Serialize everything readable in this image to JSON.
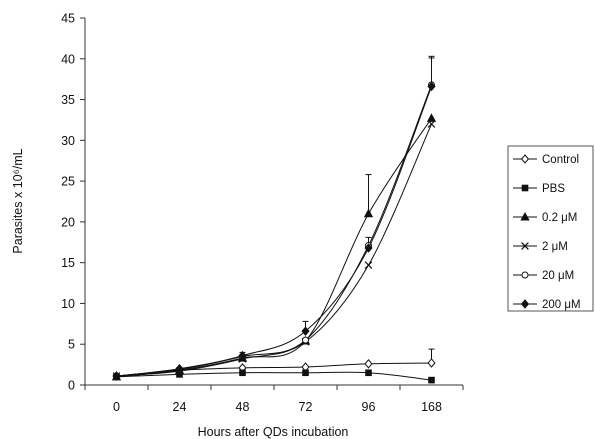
{
  "chart_data": {
    "type": "line",
    "title": "",
    "xlabel": "Hours after QDs incubation",
    "ylabel": "Parasites x 10⁶/mL",
    "categories": [
      "0",
      "24",
      "48",
      "72",
      "96",
      "168"
    ],
    "ylim": [
      0,
      45
    ],
    "yticks": [
      0,
      5,
      10,
      15,
      20,
      25,
      30,
      35,
      40,
      45
    ],
    "grid": false,
    "legend_position": "right",
    "series": [
      {
        "name": "Control",
        "marker": "open-diamond",
        "values": [
          1.1,
          1.8,
          2.1,
          2.2,
          2.6,
          2.7
        ],
        "error": [
          0,
          0,
          0,
          0,
          0,
          1.7
        ]
      },
      {
        "name": "PBS",
        "marker": "filled-square",
        "values": [
          1.0,
          1.3,
          1.5,
          1.5,
          1.5,
          0.6
        ],
        "error": [
          0,
          0,
          0,
          0,
          0,
          0
        ]
      },
      {
        "name": "0.2 μM",
        "marker": "filled-triangle",
        "values": [
          1.0,
          1.8,
          3.3,
          5.4,
          21.0,
          32.7
        ],
        "error": [
          0,
          0,
          0,
          0,
          4.8,
          0
        ]
      },
      {
        "name": "2 μM",
        "marker": "x-cross",
        "values": [
          1.1,
          1.7,
          3.2,
          5.3,
          14.7,
          32.0
        ],
        "error": [
          0,
          0,
          0,
          0,
          0,
          0
        ]
      },
      {
        "name": "20 μM",
        "marker": "open-circle",
        "values": [
          1.1,
          1.9,
          3.5,
          5.5,
          17.1,
          36.8
        ],
        "error": [
          0,
          0,
          0.5,
          0,
          1.0,
          3.5
        ]
      },
      {
        "name": "200 μM",
        "marker": "filled-diamond",
        "values": [
          1.1,
          2.0,
          3.6,
          6.6,
          16.8,
          36.6
        ],
        "error": [
          0,
          0,
          0,
          1.2,
          0,
          3.5
        ]
      }
    ]
  }
}
